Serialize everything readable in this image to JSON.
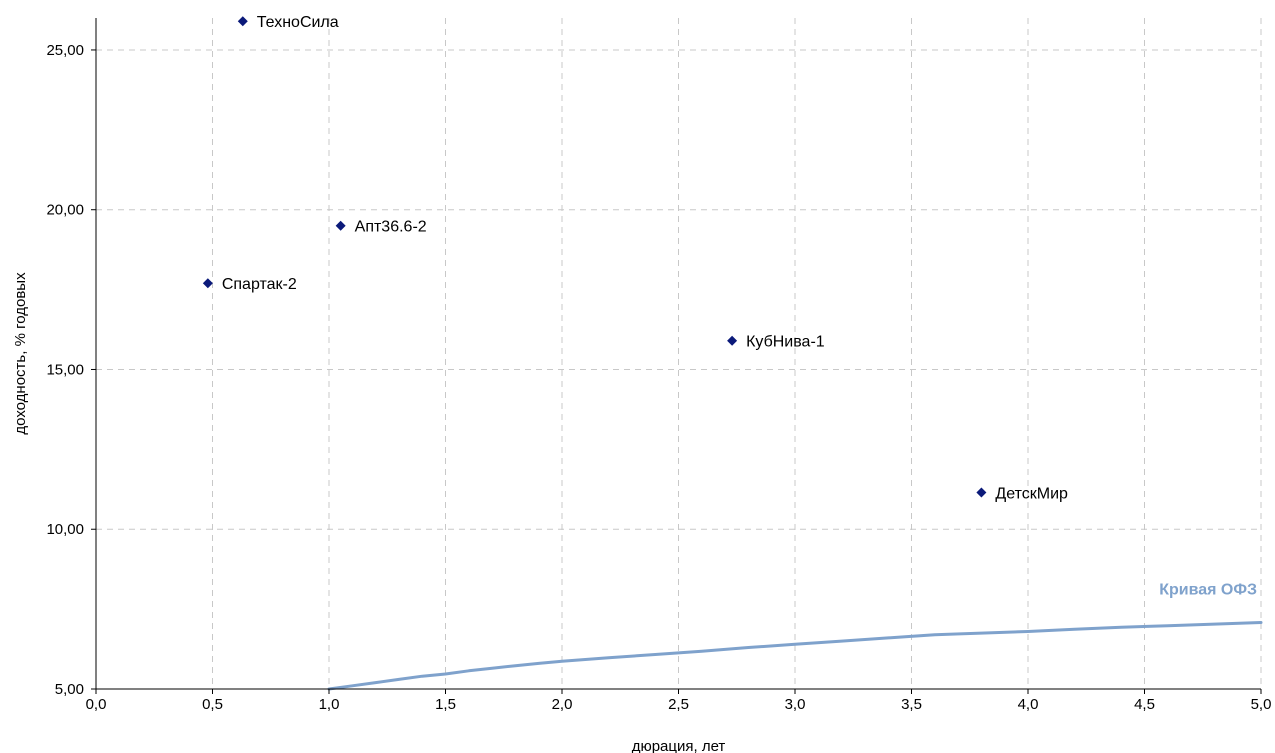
{
  "chart_data": {
    "type": "scatter",
    "title": "",
    "xlabel": "дюрация, лет",
    "ylabel": "доходность, % годовых",
    "xlim": [
      0,
      5
    ],
    "ylim": [
      5,
      26
    ],
    "x_ticks": [
      "0,0",
      "0,5",
      "1,0",
      "1,5",
      "2,0",
      "2,5",
      "3,0",
      "3,5",
      "4,0",
      "4,5",
      "5,0"
    ],
    "y_ticks": [
      "5,00",
      "10,00",
      "15,00",
      "20,00",
      "25,00"
    ],
    "grid": true,
    "points": [
      {
        "name": "ТехноСила",
        "x": 0.63,
        "y": 25.9
      },
      {
        "name": "Апт36.6-2",
        "x": 1.05,
        "y": 19.5
      },
      {
        "name": "Спартак-2",
        "x": 0.48,
        "y": 17.7
      },
      {
        "name": "КубНива-1",
        "x": 2.73,
        "y": 15.9
      },
      {
        "name": "ДетскМир",
        "x": 3.8,
        "y": 11.15
      }
    ],
    "curve": {
      "name": "Кривая ОФЗ",
      "x": [
        1.0,
        1.1,
        1.2,
        1.3,
        1.4,
        1.5,
        1.6,
        1.7,
        1.8,
        1.9,
        2.0,
        2.2,
        2.4,
        2.6,
        2.8,
        3.0,
        3.2,
        3.4,
        3.6,
        3.8,
        4.0,
        4.2,
        4.4,
        4.6,
        4.8,
        5.0
      ],
      "y": [
        5.0,
        5.1,
        5.2,
        5.3,
        5.4,
        5.47,
        5.57,
        5.65,
        5.73,
        5.8,
        5.87,
        5.98,
        6.08,
        6.18,
        6.3,
        6.4,
        6.5,
        6.6,
        6.7,
        6.75,
        6.8,
        6.87,
        6.93,
        6.98,
        7.03,
        7.08
      ]
    },
    "colors": {
      "points": "#0B1A7A",
      "curve": "#7FA2CC",
      "grid": "#C8C8C8",
      "axis": "#000000"
    }
  }
}
